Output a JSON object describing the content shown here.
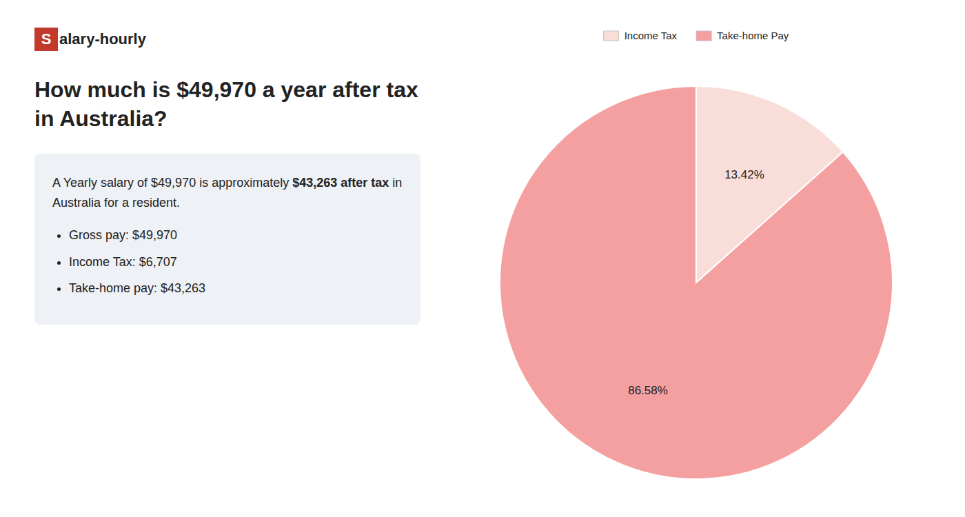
{
  "chart_data": {
    "type": "pie",
    "title": "How much is $49,970 a year after tax in Australia?",
    "annotations": [
      "Salary-hourly",
      "A Yearly salary of $49,970 is approximately ",
      "$43,263 after tax",
      " in",
      "Australia for a resident.",
      "Gross pay: $49,970",
      "Income Tax: $6,707",
      "Take-home pay: $43,263"
    ],
    "categories": [
      "Income Tax",
      "Take-home Pay"
    ],
    "values": [
      13.42,
      86.58
    ],
    "value_labels": [
      "13.42%",
      "86.58%"
    ],
    "colors": [
      "#f9ddd8",
      "#f4a0a0"
    ],
    "data_labels": true,
    "legend": "top"
  }
}
